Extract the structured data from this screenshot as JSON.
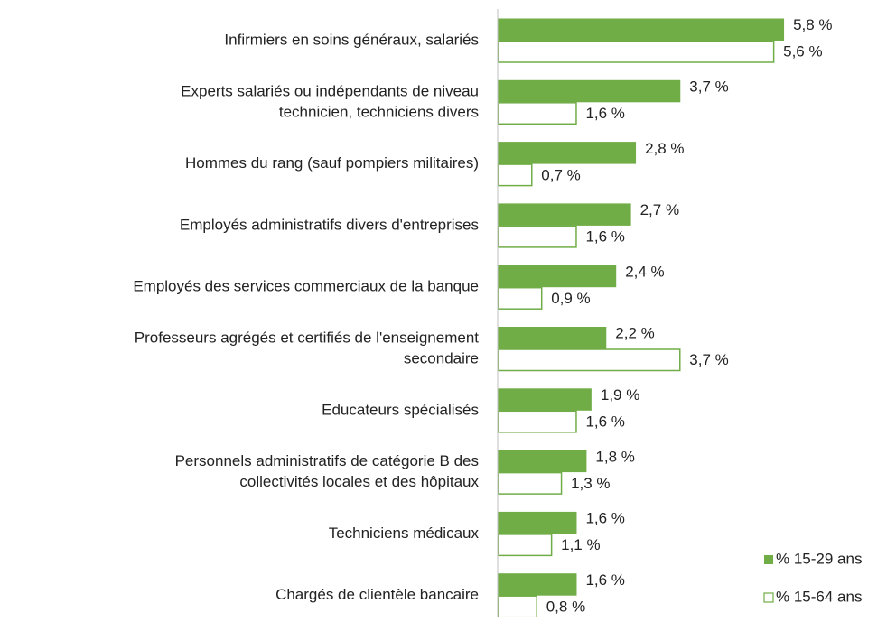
{
  "chart_data": {
    "type": "bar",
    "orientation": "horizontal",
    "categories": [
      [
        "Infirmiers en soins généraux, salariés"
      ],
      [
        "Experts salariés ou indépendants de niveau",
        "technicien, techniciens divers"
      ],
      [
        "Hommes du rang (sauf pompiers militaires)"
      ],
      [
        "Employés administratifs divers d'entreprises"
      ],
      [
        "Employés des services commerciaux de la banque"
      ],
      [
        "Professeurs agrégés et certifiés de l'enseignement",
        "secondaire"
      ],
      [
        "Educateurs spécialisés"
      ],
      [
        "Personnels administratifs de catégorie B des",
        "collectivités locales et des hôpitaux"
      ],
      [
        "Techniciens médicaux"
      ],
      [
        "Chargés de clientèle bancaire"
      ]
    ],
    "series": [
      {
        "name": "% 15-29 ans",
        "color": "#70ad47",
        "filled": true,
        "values": [
          5.8,
          3.7,
          2.8,
          2.7,
          2.4,
          2.2,
          1.9,
          1.8,
          1.6,
          1.6
        ],
        "value_labels": [
          "5,8 %",
          "3,7 %",
          "2,8 %",
          "2,7 %",
          "2,4 %",
          "2,2 %",
          "1,9 %",
          "1,8 %",
          "1,6 %",
          "1,6 %"
        ]
      },
      {
        "name": "% 15-64 ans",
        "color": "#70ad47",
        "filled": false,
        "values": [
          5.6,
          1.6,
          0.7,
          1.6,
          0.9,
          3.7,
          1.6,
          1.3,
          1.1,
          0.8
        ],
        "value_labels": [
          "5,6 %",
          "1,6 %",
          "0,7 %",
          "1,6 %",
          "0,9 %",
          "3,7 %",
          "1,6 %",
          "1,3 %",
          "1,1 %",
          "0,8 %"
        ]
      }
    ],
    "xlim": [
      0,
      6
    ],
    "legend": "lower right"
  }
}
